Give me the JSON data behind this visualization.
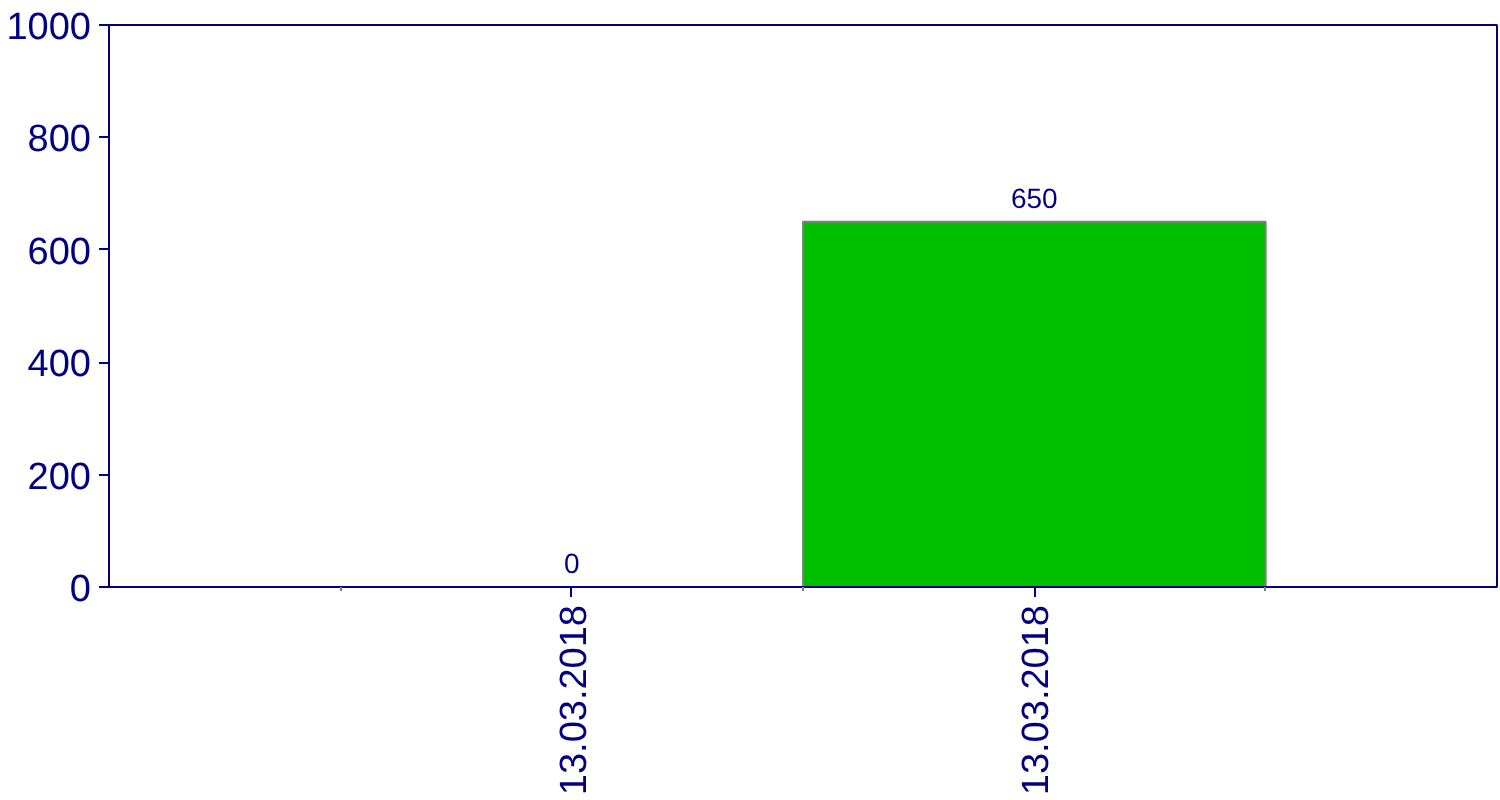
{
  "chart_data": {
    "type": "bar",
    "categories": [
      "13.03.2018",
      "13.03.2018"
    ],
    "values": [
      0,
      650
    ],
    "color": "#00bf00",
    "ylim": [
      0,
      1000
    ],
    "yticks": [
      0,
      200,
      400,
      600,
      800,
      1000
    ],
    "data_labels": true,
    "grid": false
  }
}
